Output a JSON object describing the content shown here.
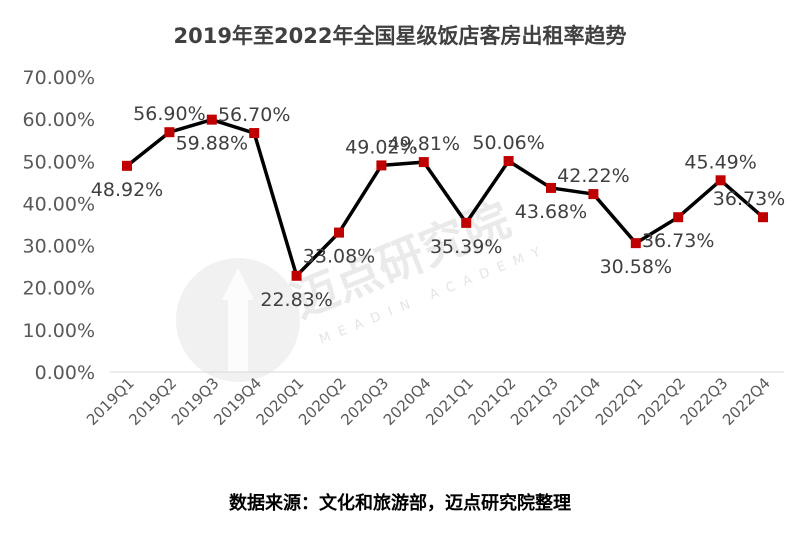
{
  "chart_data": {
    "type": "line",
    "title": "2019年至2022年全国星级饭店客房出租率趋势",
    "source_note": "数据来源：文化和旅游部，迈点研究院整理",
    "categories": [
      "2019Q1",
      "2019Q2",
      "2019Q3",
      "2019Q4",
      "2020Q1",
      "2020Q2",
      "2020Q3",
      "2020Q4",
      "2021Q1",
      "2021Q2",
      "2021Q3",
      "2021Q4",
      "2022Q1",
      "2022Q2",
      "2022Q3",
      "2022Q4"
    ],
    "values": [
      48.92,
      56.9,
      59.88,
      56.7,
      22.83,
      33.08,
      49.02,
      49.81,
      35.39,
      50.06,
      43.68,
      42.22,
      30.58,
      36.73,
      45.49,
      36.73
    ],
    "data_labels": [
      "48.92%",
      "56.90%",
      "59.88%",
      "56.70%",
      "22.83%",
      "33.08%",
      "49.02%",
      "49.81%",
      "35.39%",
      "50.06%",
      "43.68%",
      "42.22%",
      "30.58%",
      "36.73%",
      "45.49%",
      "36.73%"
    ],
    "yticks": [
      "0.00%",
      "10.00%",
      "20.00%",
      "30.00%",
      "40.00%",
      "50.00%",
      "60.00%",
      "70.00%"
    ],
    "ylim": [
      0,
      70
    ],
    "grid": false,
    "line_color": "#000000",
    "marker_color": "#c00000",
    "watermark": {
      "brand": "迈点研究院",
      "sub": "MEADIN ACADEMY"
    }
  }
}
